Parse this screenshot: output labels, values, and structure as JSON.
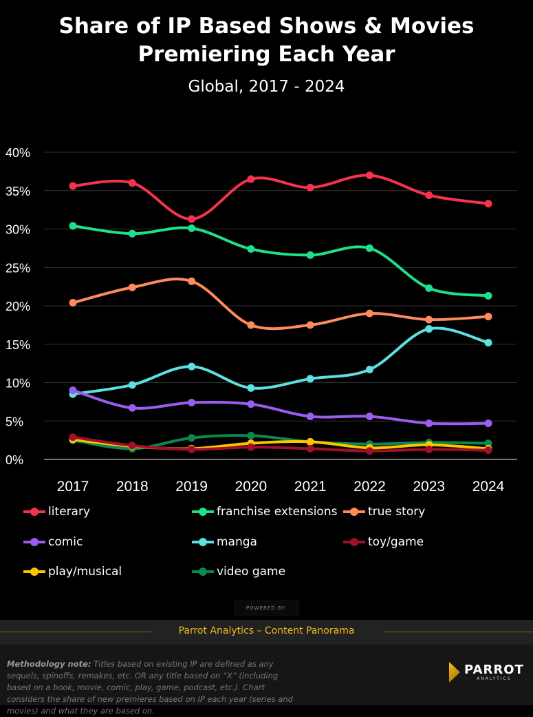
{
  "header": {
    "title_line1": "Share of IP Based Shows & Movies",
    "title_line2": "Premiering Each Year",
    "subtitle": "Global, 2017 - 2024"
  },
  "chart_data": {
    "type": "line",
    "title": "Share of IP Based Shows & Movies Premiering Each Year",
    "subtitle": "Global, 2017 - 2024",
    "x": [
      "2017",
      "2018",
      "2019",
      "2020",
      "2021",
      "2022",
      "2023",
      "2024"
    ],
    "ylim": [
      0,
      40
    ],
    "yticks": [
      "0%",
      "5%",
      "10%",
      "15%",
      "20%",
      "25%",
      "30%",
      "35%",
      "40%"
    ],
    "grid": true,
    "legend_placement": "bottom",
    "series": [
      {
        "name": "literary",
        "color": "#f5334f",
        "values": [
          35.6,
          36.0,
          31.3,
          36.5,
          35.4,
          37.0,
          34.4,
          33.3
        ]
      },
      {
        "name": "franchise extensions",
        "color": "#1fe08a",
        "values": [
          30.4,
          29.4,
          30.1,
          27.4,
          26.6,
          27.5,
          22.3,
          21.3
        ]
      },
      {
        "name": "true story",
        "color": "#ff8a5c",
        "values": [
          20.4,
          22.4,
          23.2,
          17.5,
          17.5,
          19.0,
          18.2,
          18.6
        ]
      },
      {
        "name": "comic",
        "color": "#9b5cf0",
        "values": [
          9.0,
          6.7,
          7.4,
          7.2,
          5.6,
          5.6,
          4.7,
          4.7
        ]
      },
      {
        "name": "manga",
        "color": "#5ee0e0",
        "values": [
          8.5,
          9.7,
          12.1,
          9.3,
          10.5,
          11.7,
          17.0,
          15.2
        ]
      },
      {
        "name": "toy/game",
        "color": "#a0102a",
        "values": [
          2.9,
          1.8,
          1.3,
          1.6,
          1.4,
          1.1,
          1.3,
          1.2
        ]
      },
      {
        "name": "play/musical",
        "color": "#ffc300",
        "values": [
          2.6,
          1.7,
          1.4,
          2.1,
          2.3,
          1.5,
          1.9,
          1.4
        ]
      },
      {
        "name": "video game",
        "color": "#0a8a50",
        "values": [
          2.5,
          1.4,
          2.8,
          3.1,
          2.3,
          2.0,
          2.2,
          2.1
        ]
      }
    ]
  },
  "footer": {
    "powered_by": "POWERED BY:",
    "source": "Parrot Analytics – Content Panorama",
    "note_label": "Methodology note:",
    "note_text": " Titles based on existing IP are defined as any sequels, spinoffs, remakes, etc. OR any title based on “X” (including based on a book, movie, comic, play, game, podcast, etc.). Chart considers the share of  new premieres based on IP each year (series and movies) and what they are based on.",
    "logo_name": "PARROT",
    "logo_sub": "ANALYTICS"
  }
}
